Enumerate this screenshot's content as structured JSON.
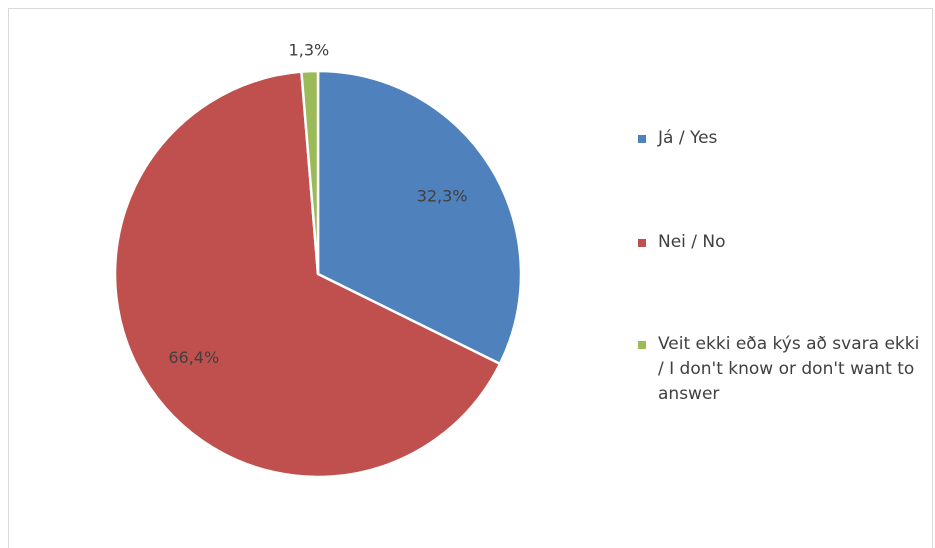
{
  "chart_data": {
    "type": "pie",
    "slices": [
      {
        "name": "Já / Yes",
        "value": 32.3,
        "label": "32,3%",
        "color": "#4f81bd"
      },
      {
        "name": "Nei / No",
        "value": 66.4,
        "label": "66,4%",
        "color": "#c0504d"
      },
      {
        "name": "Veit ekki eða kýs að svara ekki / I don't know or don't want to answer",
        "value": 1.3,
        "label": "1,3%",
        "color": "#9bbb59"
      }
    ],
    "legend_position": "right"
  }
}
